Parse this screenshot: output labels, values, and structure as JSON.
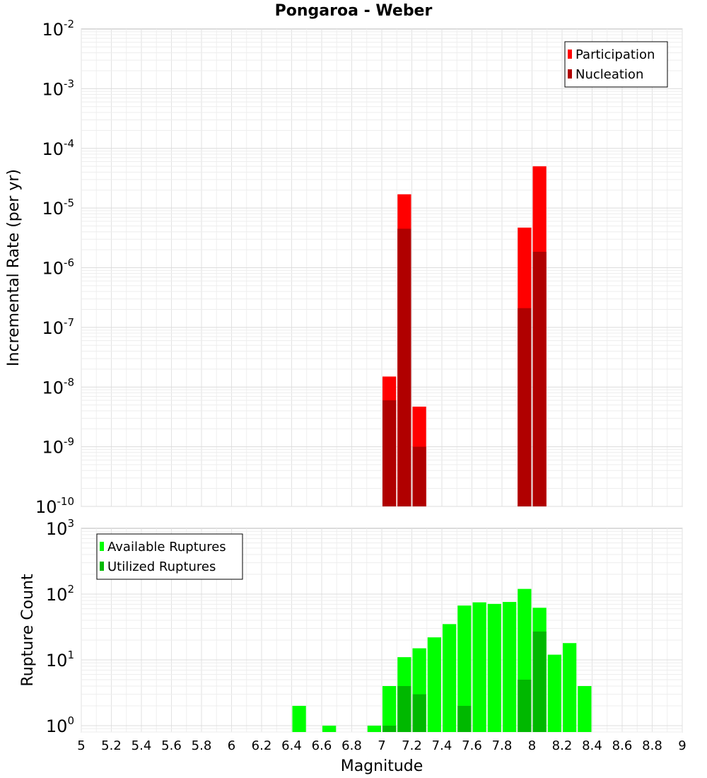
{
  "chart_data": [
    {
      "type": "bar",
      "title": "Pongaroa - Weber",
      "xlabel": "",
      "ylabel": "Incremental Rate (per yr)",
      "xlim": [
        5,
        9
      ],
      "ylim": [
        1e-10,
        0.01
      ],
      "yscale": "log",
      "ytick_exponents": [
        "-10",
        "-9",
        "-8",
        "-7",
        "-6",
        "-5",
        "-4",
        "-3",
        "-2"
      ],
      "grid": true,
      "legend_position": "top-right",
      "bin_width": 0.1,
      "series": [
        {
          "name": "Participation",
          "color": "#ff0000",
          "x": [
            7.05,
            7.15,
            7.25,
            7.95,
            8.05
          ],
          "values": [
            1.5e-08,
            1.7e-05,
            4.7e-09,
            4.7e-06,
            5e-05
          ]
        },
        {
          "name": "Nucleation",
          "color": "#b00000",
          "x": [
            7.05,
            7.15,
            7.25,
            7.95,
            8.05
          ],
          "values": [
            6e-09,
            4.5e-06,
            1e-09,
            2.1e-07,
            1.85e-06
          ]
        }
      ]
    },
    {
      "type": "bar",
      "title": "",
      "xlabel": "Magnitude",
      "ylabel": "Rupture Count",
      "xlim": [
        5,
        9
      ],
      "ylim": [
        0.8,
        1000
      ],
      "yscale": "log",
      "ytick_exponents": [
        "0",
        "1",
        "2",
        "3"
      ],
      "xticks": [
        "5",
        "5.2",
        "5.4",
        "5.6",
        "5.8",
        "6",
        "6.2",
        "6.4",
        "6.6",
        "6.8",
        "7",
        "7.2",
        "7.4",
        "7.6",
        "7.8",
        "8",
        "8.2",
        "8.4",
        "8.6",
        "8.8",
        "9"
      ],
      "grid": true,
      "legend_position": "top-left",
      "bin_width": 0.1,
      "series": [
        {
          "name": "Available Ruptures",
          "color": "#00ff00",
          "x": [
            6.45,
            6.65,
            6.95,
            7.05,
            7.15,
            7.25,
            7.35,
            7.45,
            7.55,
            7.65,
            7.75,
            7.85,
            7.95,
            8.05,
            8.15,
            8.25,
            8.35
          ],
          "values": [
            2,
            1,
            1,
            4,
            11,
            15,
            22,
            35,
            67,
            75,
            71,
            76,
            120,
            62,
            12,
            18,
            4
          ]
        },
        {
          "name": "Utilized Ruptures",
          "color": "#00b800",
          "x": [
            7.05,
            7.15,
            7.25,
            7.55,
            7.95,
            8.05
          ],
          "values": [
            1,
            4,
            3,
            2,
            5,
            27
          ]
        }
      ]
    }
  ]
}
